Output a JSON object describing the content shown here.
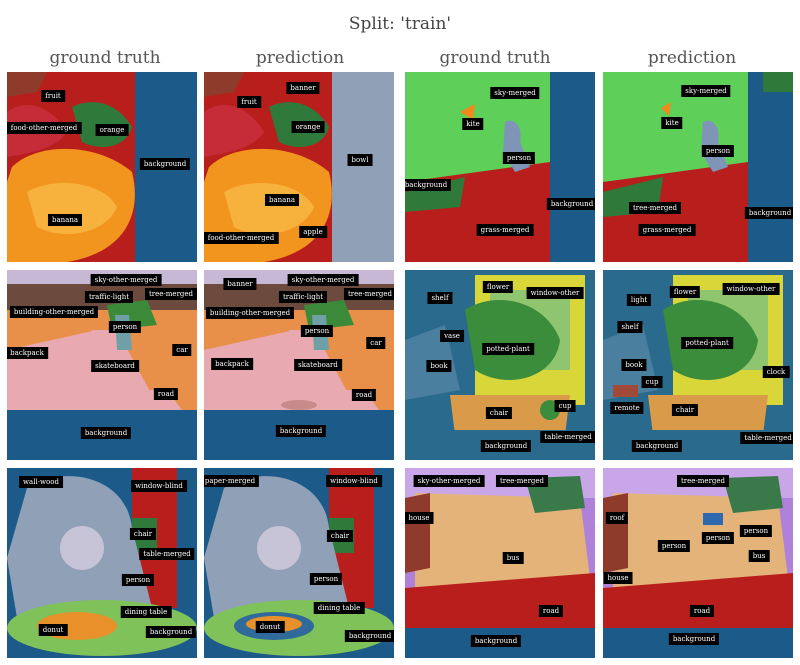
{
  "title": "Split: 'train'",
  "column_headers": [
    "ground truth",
    "prediction",
    "ground truth",
    "prediction"
  ],
  "panels": {
    "r1c1": [
      "fruit",
      "food-other-merged",
      "orange",
      "background",
      "banana"
    ],
    "r1c2": [
      "banner",
      "fruit",
      "orange",
      "bowl",
      "banana",
      "apple",
      "food-other-merged"
    ],
    "r1c3": [
      "sky-merged",
      "kite",
      "person",
      "background",
      "background",
      "grass-merged"
    ],
    "r1c4": [
      "sky-merged",
      "kite",
      "person",
      "tree-merged",
      "background",
      "grass-merged"
    ],
    "r2c1": [
      "sky-other-merged",
      "traffic-light",
      "tree-merged",
      "building-other-merged",
      "person",
      "car",
      "backpack",
      "skateboard",
      "road",
      "background"
    ],
    "r2c2": [
      "banner",
      "sky-other-merged",
      "traffic-light",
      "tree-merged",
      "building-other-merged",
      "person",
      "car",
      "backpack",
      "skateboard",
      "road",
      "background"
    ],
    "r2c3": [
      "flower",
      "window-other",
      "shelf",
      "vase",
      "potted-plant",
      "book",
      "chair",
      "cup",
      "table-merged",
      "background"
    ],
    "r2c4": [
      "flower",
      "window-other",
      "light",
      "shelf",
      "potted-plant",
      "book",
      "clock",
      "cup",
      "remote",
      "chair",
      "table-merged",
      "background"
    ],
    "r3c1": [
      "wall-wood",
      "window-blind",
      "chair",
      "table-merged",
      "person",
      "dining table",
      "donut",
      "background"
    ],
    "r3c2": [
      "paper-merged",
      "window-blind",
      "chair",
      "person",
      "dining table",
      "donut",
      "background"
    ],
    "r3c3": [
      "sky-other-merged",
      "tree-merged",
      "house",
      "bus",
      "road",
      "background"
    ],
    "r3c4": [
      "tree-merged",
      "roof",
      "person",
      "person",
      "person",
      "bus",
      "house",
      "road",
      "background"
    ]
  }
}
